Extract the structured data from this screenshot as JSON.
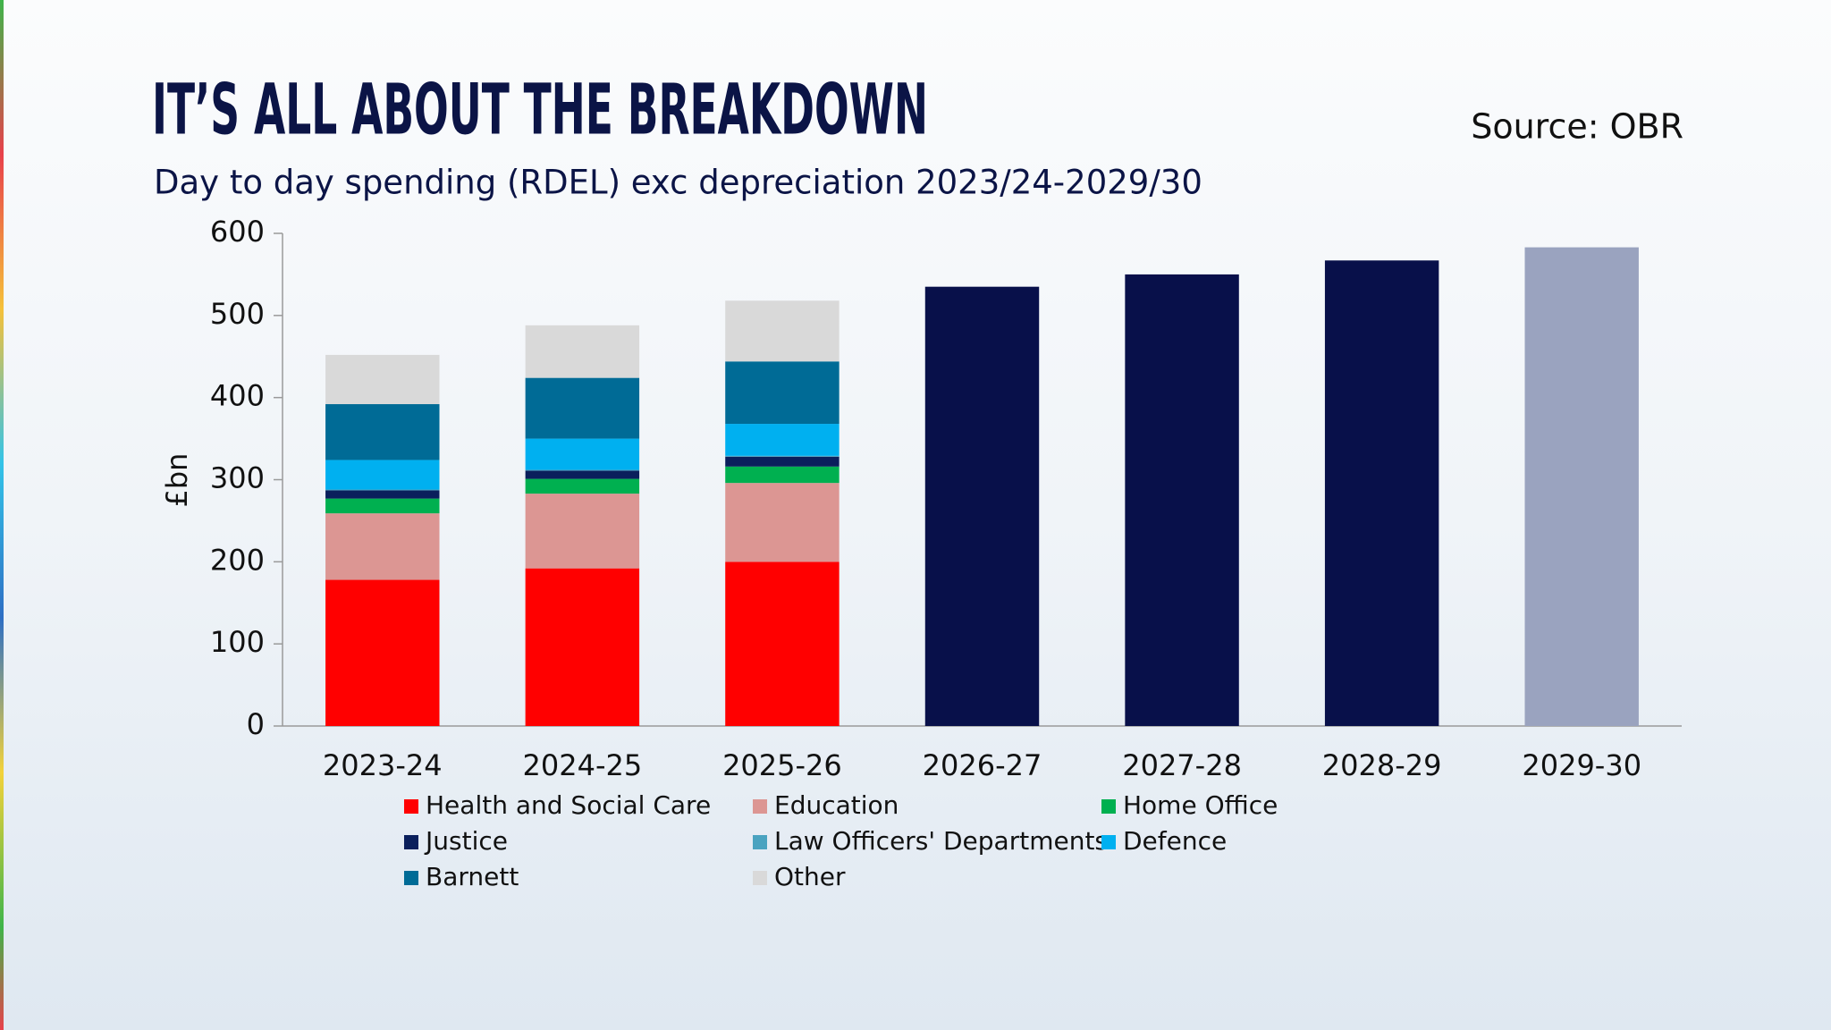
{
  "chart_data": {
    "type": "stacked_bar",
    "title": "IT’S ALL ABOUT THE BREAKDOWN",
    "subtitle": "Day to day spending (RDEL) exc depreciation 2023/24-2029/30",
    "source": "Source: OBR",
    "y_label": "£bn",
    "categories": [
      "2023-24",
      "2024-25",
      "2025-26",
      "2026-27",
      "2027-28",
      "2028-29",
      "2029-30"
    ],
    "series": [
      {
        "name": "Health and Social Care",
        "color": "#ff0000",
        "values": [
          178,
          192,
          200,
          null,
          null,
          null,
          null
        ]
      },
      {
        "name": "Education",
        "color": "#dc9693",
        "values": [
          81,
          91,
          96,
          null,
          null,
          null,
          null
        ]
      },
      {
        "name": "Home Office",
        "color": "#00b050",
        "values": [
          18,
          18,
          20,
          null,
          null,
          null,
          null
        ]
      },
      {
        "name": "Justice",
        "color": "#0a1f5c",
        "values": [
          10,
          10,
          12,
          null,
          null,
          null,
          null
        ]
      },
      {
        "name": "Law Officers' Departments",
        "color": "#4aa3c0",
        "values": [
          1,
          1,
          1,
          null,
          null,
          null,
          null
        ]
      },
      {
        "name": "Defence",
        "color": "#00b0f0",
        "values": [
          36,
          38,
          39,
          null,
          null,
          null,
          null
        ]
      },
      {
        "name": "Barnett",
        "color": "#006b96",
        "values": [
          68,
          74,
          76,
          null,
          null,
          null,
          null
        ]
      },
      {
        "name": "Other",
        "color": "#d9d9d9",
        "values": [
          60,
          64,
          74,
          null,
          null,
          null,
          null
        ]
      },
      {
        "colors": [
          null,
          null,
          null,
          "#08104a",
          "#08104a",
          "#08104a",
          "#9aa3bf"
        ],
        "values": [
          null,
          null,
          null,
          535,
          550,
          567,
          583
        ]
      }
    ],
    "ylim": [
      0,
      600
    ],
    "yticks": [
      0,
      100,
      200,
      300,
      400,
      500,
      600
    ],
    "grid": false,
    "legend": "bottom"
  }
}
